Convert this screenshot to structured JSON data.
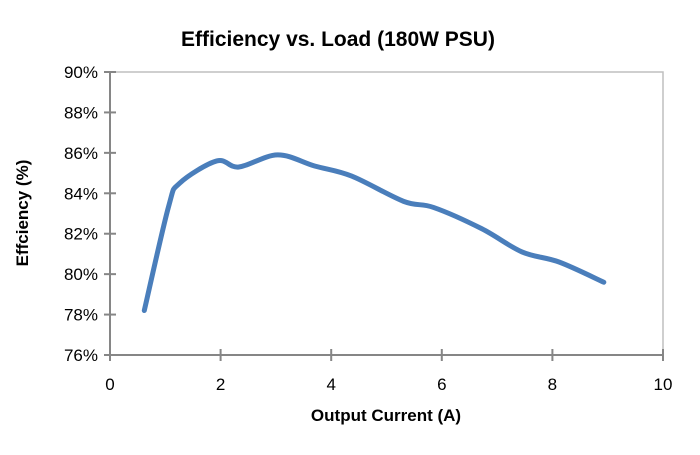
{
  "chart_data": {
    "type": "line",
    "title": "Efficiency vs. Load (180W PSU)",
    "xlabel": "Output Current (A)",
    "ylabel": "Effciency (%)",
    "xlim": [
      0,
      10
    ],
    "ylim": [
      76,
      90
    ],
    "xticks": [
      "0",
      "2",
      "4",
      "6",
      "8",
      "10"
    ],
    "yticks": [
      "76%",
      "78%",
      "80%",
      "82%",
      "84%",
      "86%",
      "88%",
      "90%"
    ],
    "grid": false,
    "legend": "none",
    "series": [
      {
        "color": "#4a7ebb",
        "smooth": true,
        "x": [
          0.62,
          1.06,
          1.26,
          1.93,
          2.33,
          3.03,
          3.7,
          4.37,
          5.31,
          5.85,
          6.72,
          7.45,
          8.12,
          8.93
        ],
        "y": [
          78.2,
          83.35,
          84.5,
          85.6,
          85.3,
          85.9,
          85.35,
          84.85,
          83.6,
          83.3,
          82.25,
          81.1,
          80.6,
          79.6
        ]
      }
    ]
  }
}
